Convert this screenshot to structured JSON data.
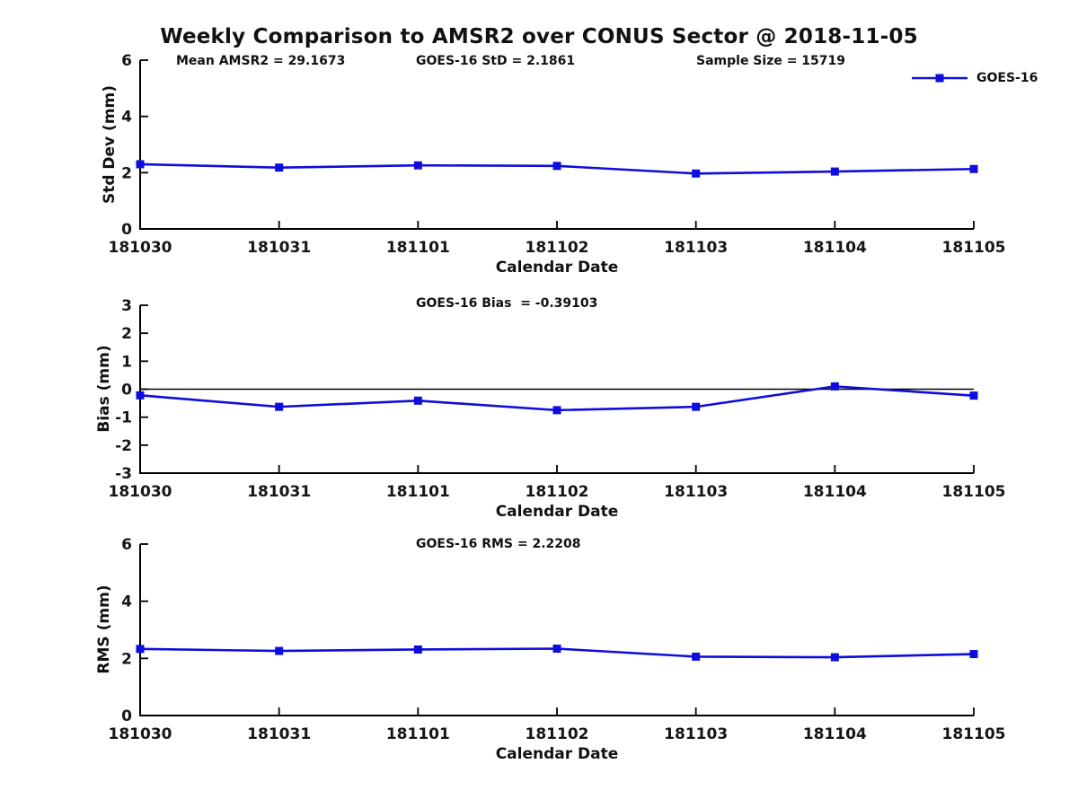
{
  "colors": {
    "line": "#0d0ddd",
    "axis": "#000000",
    "text": "#151515"
  },
  "chart_data": [
    {
      "type": "line",
      "title": "Weekly Comparison to AMSR2 over CONUS Sector @ 2018-11-05",
      "annotations": [
        "Mean AMSR2 = 29.1673",
        "GOES-16 StD = 2.1861",
        "Sample Size = 15719"
      ],
      "legend": "GOES-16",
      "legend_position": "top-right",
      "series_name": "GOES-16",
      "categories": [
        "181030",
        "181031",
        "181101",
        "181102",
        "181103",
        "181104",
        "181105"
      ],
      "values": [
        2.3,
        2.18,
        2.26,
        2.24,
        1.97,
        2.04,
        2.13
      ],
      "xlabel": "Calendar Date",
      "ylabel": "Std Dev (mm)",
      "ylim": [
        0,
        6
      ],
      "yticks": [
        0,
        2,
        4,
        6
      ],
      "grid": false,
      "zero_line": false
    },
    {
      "type": "line",
      "annotations": [
        "GOES-16 Bias  = -0.39103"
      ],
      "series_name": "GOES-16",
      "categories": [
        "181030",
        "181031",
        "181101",
        "181102",
        "181103",
        "181104",
        "181105"
      ],
      "values": [
        -0.22,
        -0.63,
        -0.41,
        -0.75,
        -0.63,
        0.1,
        -0.23
      ],
      "xlabel": "Calendar Date",
      "ylabel": "Bias (mm)",
      "ylim": [
        -3,
        3
      ],
      "yticks": [
        3,
        2,
        1,
        0,
        -1,
        -2,
        -3
      ],
      "grid": false,
      "zero_line": true
    },
    {
      "type": "line",
      "annotations": [
        "GOES-16 RMS = 2.2208"
      ],
      "series_name": "GOES-16",
      "categories": [
        "181030",
        "181031",
        "181101",
        "181102",
        "181103",
        "181104",
        "181105"
      ],
      "values": [
        2.33,
        2.26,
        2.31,
        2.34,
        2.06,
        2.04,
        2.15
      ],
      "xlabel": "Calendar Date",
      "ylabel": "RMS (mm)",
      "ylim": [
        0,
        6
      ],
      "yticks": [
        0,
        2,
        4,
        6
      ],
      "grid": false,
      "zero_line": false
    }
  ]
}
